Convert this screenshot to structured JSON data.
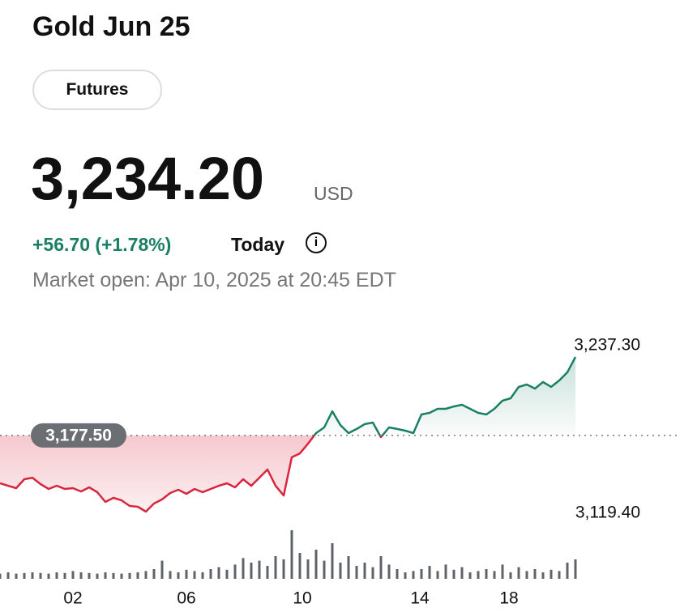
{
  "header": {
    "title": "Gold Jun 25",
    "tab": "Futures",
    "price": "3,234.20",
    "currency": "USD",
    "change": "+56.70 (+1.78%)",
    "period": "Today",
    "status": "Market open: Apr 10, 2025 at 20:45 EDT"
  },
  "chart_data": {
    "type": "line",
    "values": [
      3141.0,
      3139.1,
      3137.3,
      3144.1,
      3145.3,
      3140.4,
      3136.7,
      3139.1,
      3136.7,
      3137.3,
      3134.8,
      3137.9,
      3134.2,
      3126.8,
      3129.9,
      3128.0,
      3123.7,
      3123.1,
      3119.4,
      3125.6,
      3128.7,
      3133.6,
      3136.1,
      3133.0,
      3136.7,
      3134.2,
      3136.7,
      3139.1,
      3141.0,
      3137.9,
      3144.1,
      3139.1,
      3145.3,
      3151.5,
      3139.1,
      3131.7,
      3160.8,
      3163.8,
      3171.2,
      3179.3,
      3183.6,
      3195.9,
      3185.4,
      3179.3,
      3182.4,
      3186.1,
      3187.3,
      3176.2,
      3183.6,
      3182.4,
      3181.1,
      3179.3,
      3193.5,
      3194.7,
      3197.8,
      3197.8,
      3199.6,
      3200.9,
      3197.8,
      3194.7,
      3193.5,
      3197.8,
      3204.0,
      3205.8,
      3214.5,
      3216.3,
      3213.2,
      3218.2,
      3214.5,
      3219.4,
      3225.6,
      3237.3
    ],
    "volume": [
      8,
      10,
      8,
      9,
      10,
      9,
      8,
      10,
      9,
      12,
      10,
      9,
      8,
      10,
      9,
      8,
      9,
      10,
      12,
      15,
      28,
      12,
      10,
      14,
      12,
      10,
      15,
      18,
      14,
      22,
      32,
      25,
      28,
      20,
      35,
      30,
      75,
      40,
      30,
      45,
      28,
      55,
      25,
      35,
      20,
      25,
      18,
      35,
      22,
      15,
      10,
      12,
      15,
      20,
      12,
      22,
      14,
      18,
      10,
      12,
      15,
      12,
      22,
      10,
      18,
      12,
      15,
      10,
      14,
      12,
      25,
      30
    ],
    "xlim": [
      0,
      83.9
    ],
    "xticks": [
      {
        "value": 9,
        "label": "02"
      },
      {
        "value": 23,
        "label": "06"
      },
      {
        "value": 37.3,
        "label": "10"
      },
      {
        "value": 51.8,
        "label": "14"
      },
      {
        "value": 62.8,
        "label": "18"
      }
    ],
    "ylim": [
      3108.3,
      3262.6
    ],
    "y2lim": [
      0,
      100
    ],
    "previous_close": {
      "value": 3177.5,
      "label": "3,177.50"
    },
    "high": {
      "value": 3237.3,
      "label": "3,237.30"
    },
    "low": {
      "value": 3119.4,
      "label": "3,119.40"
    },
    "up_color": "#1a7f64",
    "down_color": "#d7263d",
    "volume_color": "#5f6368"
  }
}
